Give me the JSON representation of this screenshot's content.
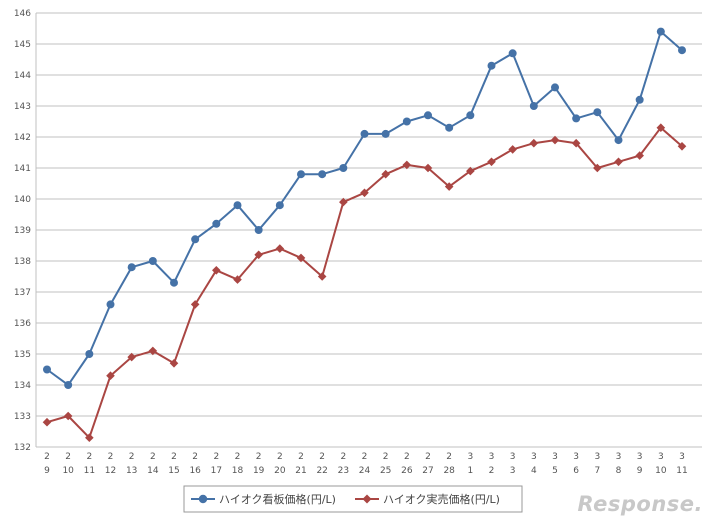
{
  "chart_data": {
    "type": "line",
    "x_top": [
      "2",
      "2",
      "2",
      "2",
      "2",
      "2",
      "2",
      "2",
      "2",
      "2",
      "2",
      "2",
      "2",
      "2",
      "2",
      "2",
      "2",
      "2",
      "2",
      "2",
      "3",
      "3",
      "3",
      "3",
      "3",
      "3",
      "3",
      "3",
      "3",
      "3",
      "3"
    ],
    "x_bottom": [
      "9",
      "10",
      "11",
      "12",
      "13",
      "14",
      "15",
      "16",
      "17",
      "18",
      "19",
      "20",
      "21",
      "22",
      "23",
      "24",
      "25",
      "26",
      "27",
      "28",
      "1",
      "2",
      "3",
      "4",
      "5",
      "6",
      "7",
      "8",
      "9",
      "10",
      "11"
    ],
    "ylim": [
      132,
      146
    ],
    "yticks": [
      132,
      133,
      134,
      135,
      136,
      137,
      138,
      139,
      140,
      141,
      142,
      143,
      144,
      145,
      146
    ],
    "grid": true,
    "legend_position": "bottom",
    "series": [
      {
        "name": "ハイオク看板価格(円/L)",
        "color": "#4572a7",
        "marker": "circle",
        "values": [
          134.5,
          134.0,
          135.0,
          136.6,
          137.8,
          138.0,
          137.3,
          138.7,
          139.2,
          139.8,
          139.0,
          139.8,
          140.8,
          140.8,
          141.0,
          142.1,
          142.1,
          142.5,
          142.7,
          142.3,
          142.7,
          144.3,
          144.7,
          143.0,
          143.6,
          142.6,
          142.8,
          141.9,
          143.2,
          145.4,
          144.8
        ]
      },
      {
        "name": "ハイオク実売価格(円/L)",
        "color": "#aa4643",
        "marker": "diamond",
        "values": [
          132.8,
          133.0,
          132.3,
          134.3,
          134.9,
          135.1,
          134.7,
          136.6,
          137.7,
          137.4,
          138.2,
          138.4,
          138.1,
          137.5,
          139.9,
          140.2,
          140.8,
          141.1,
          141.0,
          140.4,
          140.9,
          141.2,
          141.6,
          141.8,
          141.9,
          141.8,
          141.0,
          141.2,
          141.4,
          142.3,
          141.7
        ]
      }
    ]
  },
  "watermark": "Response."
}
